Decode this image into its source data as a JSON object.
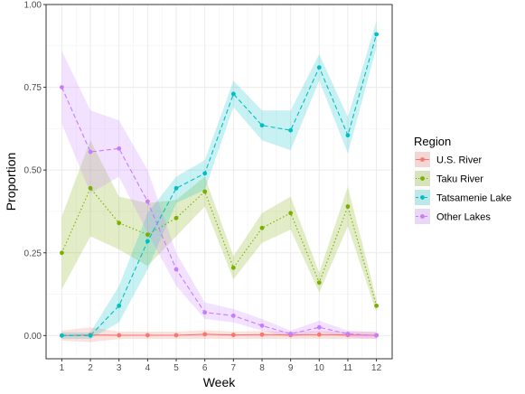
{
  "chart_data": {
    "type": "line",
    "xlabel": "Week",
    "ylabel": "Proportion",
    "x": [
      1,
      2,
      3,
      4,
      5,
      6,
      7,
      8,
      9,
      10,
      11,
      12
    ],
    "xlim": [
      0.45,
      12.55
    ],
    "ylim": [
      -0.07,
      1.0
    ],
    "y_ticks": [
      0.0,
      0.25,
      0.5,
      0.75,
      1.0
    ],
    "y_tick_labels": [
      "0.00",
      "0.25",
      "0.50",
      "0.75",
      "1.00"
    ],
    "grid": true,
    "legend": {
      "title": "Region",
      "placement": "right"
    },
    "series": [
      {
        "name": "U.S. River",
        "color": "#F8766D",
        "line_style": "solid",
        "values": [
          0.0,
          0.002,
          0.001,
          0.001,
          0.001,
          0.004,
          0.002,
          0.003,
          0.002,
          0.003,
          0.002,
          0.001
        ],
        "lower": [
          -0.015,
          -0.02,
          -0.01,
          -0.01,
          -0.01,
          -0.01,
          -0.01,
          -0.01,
          -0.01,
          -0.01,
          -0.01,
          -0.01
        ],
        "upper": [
          0.015,
          0.025,
          0.012,
          0.012,
          0.012,
          0.016,
          0.012,
          0.014,
          0.012,
          0.014,
          0.012,
          0.012
        ]
      },
      {
        "name": "Taku River",
        "color": "#7CAE00",
        "line_style": "dotted",
        "values": [
          0.25,
          0.445,
          0.34,
          0.305,
          0.355,
          0.435,
          0.205,
          0.325,
          0.37,
          0.16,
          0.39,
          0.09
        ],
        "lower": [
          0.14,
          0.3,
          0.26,
          0.21,
          0.3,
          0.39,
          0.17,
          0.28,
          0.32,
          0.13,
          0.33,
          0.07
        ],
        "upper": [
          0.36,
          0.59,
          0.42,
          0.4,
          0.41,
          0.48,
          0.24,
          0.37,
          0.42,
          0.19,
          0.45,
          0.11
        ]
      },
      {
        "name": "Tatsamenie Lake",
        "color": "#00BFC4",
        "line_style": "dashed",
        "values": [
          0.0,
          0.0,
          0.09,
          0.285,
          0.445,
          0.49,
          0.73,
          0.635,
          0.62,
          0.81,
          0.605,
          0.91
        ],
        "lower": [
          -0.01,
          -0.01,
          0.04,
          0.2,
          0.4,
          0.44,
          0.69,
          0.59,
          0.56,
          0.77,
          0.55,
          0.87
        ],
        "upper": [
          0.01,
          0.01,
          0.15,
          0.37,
          0.48,
          0.53,
          0.77,
          0.68,
          0.68,
          0.85,
          0.66,
          0.95
        ]
      },
      {
        "name": "Other Lakes",
        "color": "#C77CFF",
        "line_style": "dashed",
        "values": [
          0.75,
          0.555,
          0.565,
          0.405,
          0.2,
          0.07,
          0.06,
          0.03,
          0.005,
          0.025,
          0.005,
          0.0
        ],
        "lower": [
          0.64,
          0.43,
          0.48,
          0.31,
          0.15,
          0.05,
          0.04,
          0.015,
          -0.005,
          0.01,
          -0.005,
          -0.01
        ],
        "upper": [
          0.86,
          0.68,
          0.65,
          0.5,
          0.25,
          0.1,
          0.08,
          0.05,
          0.015,
          0.045,
          0.015,
          0.01
        ]
      }
    ]
  }
}
